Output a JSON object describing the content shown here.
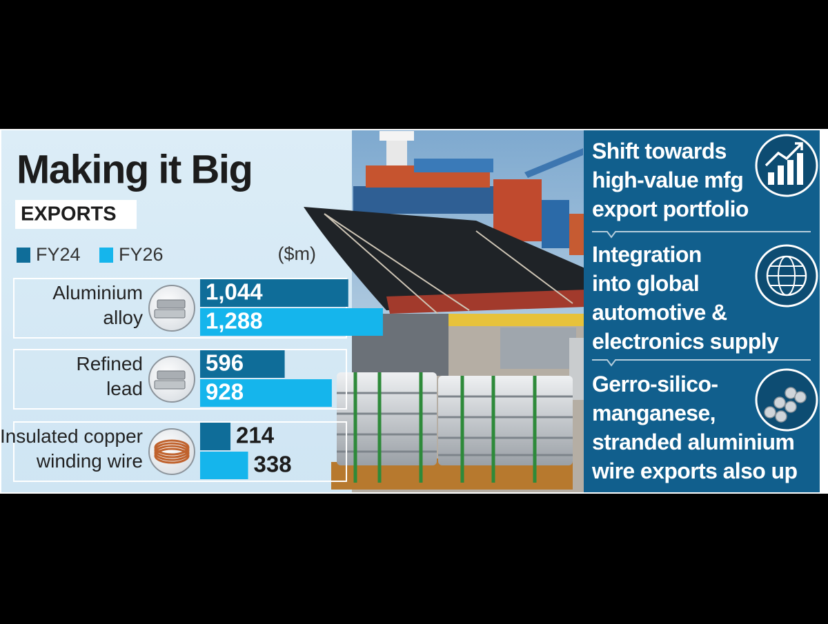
{
  "chart_data": {
    "type": "bar",
    "orientation": "horizontal",
    "title": "Making it Big",
    "subtitle": "EXPORTS",
    "unit_label": "($m)",
    "categories": [
      "Aluminium\nalloy",
      "Refined\nlead",
      "Insulated copper\nwinding wire"
    ],
    "series": [
      {
        "name": "FY24",
        "color": "#0f6d99",
        "values": [
          1044,
          596,
          214
        ],
        "value_labels": [
          "1,044",
          "596",
          "214"
        ]
      },
      {
        "name": "FY26",
        "color": "#15b5ec",
        "values": [
          1288,
          928,
          338
        ],
        "value_labels": [
          "1,288",
          "928",
          "338"
        ]
      }
    ]
  },
  "side_panel": {
    "points": [
      "Shift towards\nhigh-value mfg\nexport portfolio",
      "Integration\ninto global\nautomotive &\nelectronics supply",
      "Gerro-silico-\nmanganese,\nstranded aluminium\nwire exports also up"
    ]
  }
}
